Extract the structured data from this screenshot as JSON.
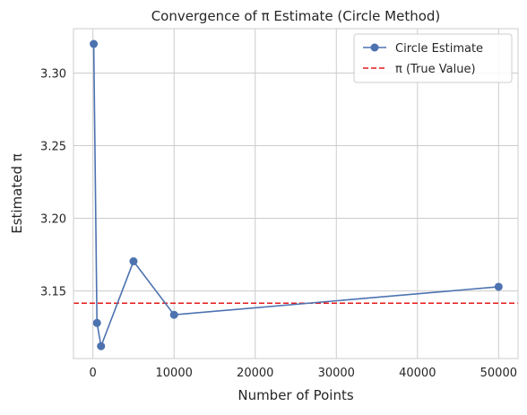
{
  "chart_data": {
    "type": "line",
    "title": "Convergence of π Estimate (Circle Method)",
    "xlabel": "Number of Points",
    "ylabel": "Estimated π",
    "xlim": [
      -2395,
      52395
    ],
    "ylim": [
      3.1035,
      3.3305
    ],
    "xticks": [
      0,
      10000,
      20000,
      30000,
      40000,
      50000
    ],
    "xtick_labels": [
      "0",
      "10000",
      "20000",
      "30000",
      "40000",
      "50000"
    ],
    "yticks": [
      3.15,
      3.2,
      3.25,
      3.3
    ],
    "ytick_labels": [
      "3.15",
      "3.20",
      "3.25",
      "3.30"
    ],
    "grid": true,
    "legend_position": "top-right",
    "series": [
      {
        "name": "Circle Estimate",
        "color": "#4c72b0",
        "marker": "circle",
        "x": [
          100,
          500,
          1000,
          5000,
          10000,
          50000
        ],
        "y": [
          3.32,
          3.128,
          3.112,
          3.1704,
          3.1336,
          3.15288
        ]
      }
    ],
    "reference_lines": [
      {
        "name": "π (True Value)",
        "y": 3.14159,
        "color": "#e41a1c",
        "style": "dashed"
      }
    ]
  }
}
